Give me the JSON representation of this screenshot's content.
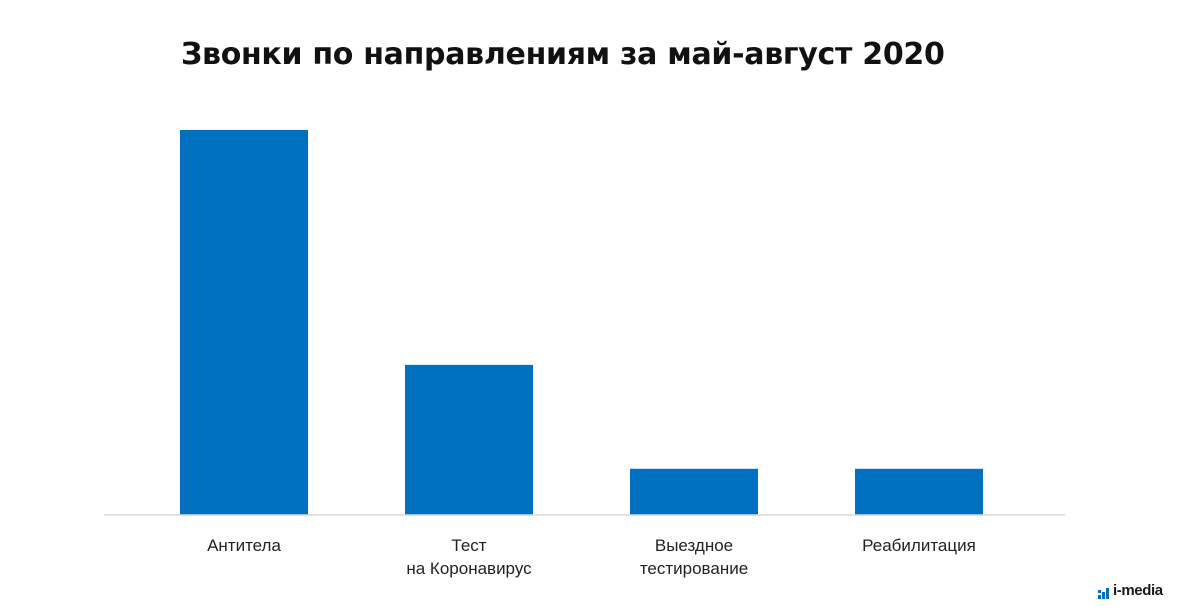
{
  "chart_data": {
    "type": "bar",
    "title": "Звонки по направлениям за май-август 2020",
    "categories": [
      [
        "Антитела"
      ],
      [
        "Тест",
        "на Коронавирус"
      ],
      [
        "Выездное",
        "тестирование"
      ],
      [
        "Реабилитация"
      ]
    ],
    "values": [
      100,
      39,
      12,
      12
    ],
    "ylim": [
      0,
      100
    ],
    "xlabel": "",
    "ylabel": "",
    "grid": false,
    "colors": {
      "bar": "#0070C0",
      "axis": "#D9D9D9"
    }
  },
  "brand": {
    "text": "i-media",
    "icon": "bar-chart-icon"
  }
}
